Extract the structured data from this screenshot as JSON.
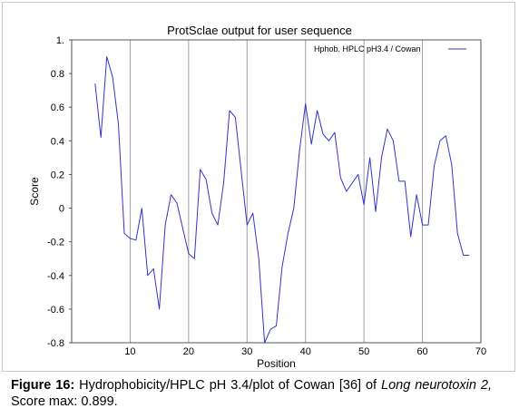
{
  "chart_data": {
    "type": "line",
    "title": "ProtSclae output for user sequence",
    "xlabel": "Position",
    "ylabel": "Score",
    "xlim": [
      0,
      70
    ],
    "ylim": [
      -0.8,
      1.0
    ],
    "x_ticks": [
      10,
      20,
      30,
      40,
      50,
      60,
      70
    ],
    "x_tick_labels": [
      "10",
      "20",
      "30",
      "40",
      "50",
      "60",
      "70"
    ],
    "y_ticks": [
      -0.8,
      -0.6,
      -0.4,
      -0.2,
      0,
      0.2,
      0.4,
      0.6,
      0.8,
      1.0
    ],
    "y_tick_labels": [
      "-0.8",
      "-0.6",
      "-0.4",
      "-0.2",
      "0",
      "0.2",
      "0.4",
      "0.6",
      "0.8",
      "1."
    ],
    "grid": "vertical",
    "legend_position": "top-right",
    "series": [
      {
        "name": "Hphob.  HPLC pH3.4 /   Cowan",
        "color": "#3333cc",
        "x": [
          4,
          5,
          6,
          7,
          8,
          9,
          10,
          11,
          12,
          13,
          14,
          15,
          16,
          17,
          18,
          19,
          20,
          21,
          22,
          23,
          24,
          25,
          26,
          27,
          28,
          29,
          30,
          31,
          32,
          33,
          34,
          35,
          36,
          37,
          38,
          39,
          40,
          41,
          42,
          43,
          44,
          45,
          46,
          47,
          48,
          49,
          50,
          51,
          52,
          53,
          54,
          55,
          56,
          57,
          58,
          59,
          60,
          61,
          62,
          63,
          64,
          65,
          66,
          67,
          68
        ],
        "y": [
          0.74,
          0.42,
          0.9,
          0.78,
          0.5,
          -0.15,
          -0.18,
          -0.19,
          0.0,
          -0.4,
          -0.36,
          -0.6,
          -0.1,
          0.08,
          0.03,
          -0.12,
          -0.27,
          -0.3,
          0.23,
          0.17,
          -0.03,
          -0.1,
          0.15,
          0.58,
          0.54,
          0.22,
          -0.1,
          -0.03,
          -0.3,
          -0.8,
          -0.72,
          -0.7,
          -0.35,
          -0.15,
          0.0,
          0.35,
          0.62,
          0.38,
          0.58,
          0.44,
          0.4,
          0.45,
          0.18,
          0.1,
          0.15,
          0.2,
          0.02,
          0.3,
          -0.02,
          0.3,
          0.47,
          0.4,
          0.16,
          0.16,
          -0.17,
          0.08,
          -0.1,
          -0.1,
          0.25,
          0.4,
          0.43,
          0.26,
          -0.15,
          -0.28,
          -0.28
        ]
      }
    ]
  },
  "caption": {
    "figure_label": "Figure 16:",
    "text_main": " Hydrophobicity/HPLC pH 3.4/plot of Cowan [36] of ",
    "protein_name": "Long neurotoxin 2,",
    "text_end": " Score max: 0.899."
  }
}
